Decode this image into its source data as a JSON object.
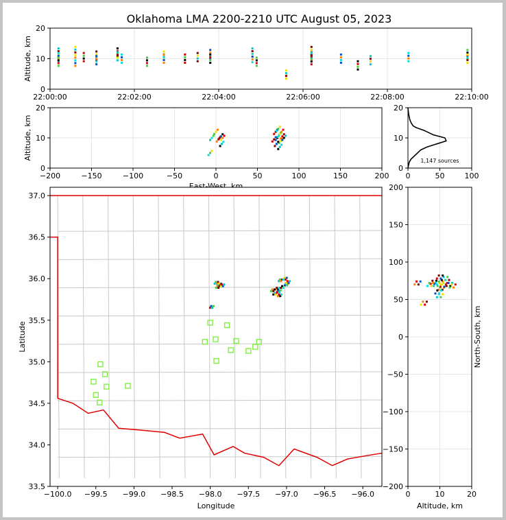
{
  "title": "Oklahoma LMA 2200-2210 UTC August 05, 2023",
  "chart_data": [
    {
      "type": "scatter",
      "panel": "altitude-time",
      "ylabel": "Altitude, km",
      "xlabel": "",
      "xlim_minutes": [
        0,
        10
      ],
      "ylim": [
        0,
        20
      ],
      "xticks": [
        "22:00:00",
        "22:02:00",
        "22:04:00",
        "22:06:00",
        "22:08:00",
        "22:10:00"
      ],
      "yticks": [
        "0",
        "10",
        "20"
      ],
      "grid": true,
      "points_min_km": [
        [
          0.2,
          12
        ],
        [
          0.2,
          10.5
        ],
        [
          0.2,
          9
        ],
        [
          0.6,
          12.5
        ],
        [
          0.6,
          9
        ],
        [
          0.8,
          10.5
        ],
        [
          1.1,
          11
        ],
        [
          1.1,
          9.5
        ],
        [
          1.6,
          12
        ],
        [
          1.6,
          10.8
        ],
        [
          1.7,
          10
        ],
        [
          2.3,
          9
        ],
        [
          2.7,
          11
        ],
        [
          2.7,
          10
        ],
        [
          3.2,
          10
        ],
        [
          3.5,
          10.5
        ],
        [
          3.8,
          11.5
        ],
        [
          3.8,
          10
        ],
        [
          4.8,
          12
        ],
        [
          4.8,
          10.2
        ],
        [
          4.9,
          9
        ],
        [
          5.6,
          4.8
        ],
        [
          6.2,
          11
        ],
        [
          6.2,
          9.5
        ],
        [
          6.2,
          12.5
        ],
        [
          6.9,
          10
        ],
        [
          7.3,
          7.8
        ],
        [
          7.6,
          9.5
        ],
        [
          8.5,
          10.5
        ],
        [
          9.9,
          11.5
        ],
        [
          9.9,
          10
        ]
      ]
    },
    {
      "type": "scatter",
      "panel": "altitude-east-west",
      "xlabel": "East-West, km",
      "ylabel": "Altitude, km",
      "xlim": [
        -200,
        200
      ],
      "ylim": [
        0,
        20
      ],
      "xticks": [
        "−200",
        "−150",
        "−100",
        "−50",
        "0",
        "50",
        "100",
        "150",
        "200"
      ],
      "yticks": [
        "0",
        "10",
        "20"
      ],
      "grid": true,
      "points": [
        [
          -5,
          10
        ],
        [
          0,
          12
        ],
        [
          3,
          9.5
        ],
        [
          6,
          10.5
        ],
        [
          7,
          8
        ],
        [
          -7,
          5
        ],
        [
          8,
          10
        ],
        [
          72,
          12
        ],
        [
          74,
          10
        ],
        [
          76,
          11
        ],
        [
          78,
          9
        ],
        [
          80,
          10.5
        ],
        [
          73,
          8
        ],
        [
          77,
          7
        ],
        [
          75,
          13
        ],
        [
          79,
          12
        ],
        [
          70,
          9.5
        ],
        [
          82,
          10
        ]
      ]
    },
    {
      "type": "line",
      "panel": "altitude-histogram",
      "xlim": [
        0,
        100
      ],
      "ylim": [
        0,
        20
      ],
      "xticks": [
        "0",
        "50",
        "100"
      ],
      "yticks": [
        "0",
        "10",
        "20"
      ],
      "annotation": "1,147 sources",
      "x": [
        0,
        1,
        2,
        5,
        10,
        15,
        20,
        30,
        45,
        60,
        58,
        40,
        30,
        25,
        18,
        12,
        8,
        5,
        3,
        2,
        1,
        0.5,
        0.2,
        0
      ],
      "y": [
        0,
        1,
        2,
        3,
        4,
        5,
        6,
        7,
        8,
        9,
        10,
        11,
        12,
        12.5,
        13,
        13.5,
        14,
        15,
        16,
        17,
        18,
        19,
        19.5,
        20
      ]
    },
    {
      "type": "map",
      "panel": "plan-view",
      "xlabel": "Longitude",
      "ylabel": "Latitude",
      "xlim": [
        -100.1,
        -95.75
      ],
      "ylim": [
        33.5,
        37.1
      ],
      "xticks": [
        "−100.0",
        "−99.5",
        "−99.0",
        "−98.5",
        "−98.0",
        "−97.5",
        "−97.0",
        "−96.5",
        "−96.0"
      ],
      "yticks": [
        "33.5",
        "34.0",
        "34.5",
        "35.0",
        "35.5",
        "36.0",
        "36.5",
        "37.0"
      ],
      "stations": [
        [
          -99.44,
          34.97
        ],
        [
          -99.38,
          34.85
        ],
        [
          -99.53,
          34.76
        ],
        [
          -99.08,
          34.71
        ],
        [
          -99.36,
          34.7
        ],
        [
          -99.5,
          34.6
        ],
        [
          -99.45,
          34.51
        ],
        [
          -98.0,
          35.47
        ],
        [
          -97.78,
          35.44
        ],
        [
          -98.07,
          35.24
        ],
        [
          -97.93,
          35.27
        ],
        [
          -97.66,
          35.25
        ],
        [
          -97.36,
          35.24
        ],
        [
          -97.41,
          35.18
        ],
        [
          -97.73,
          35.14
        ],
        [
          -97.5,
          35.13
        ],
        [
          -97.92,
          35.01
        ]
      ],
      "flashes": [
        [
          -97.92,
          35.95
        ],
        [
          -97.88,
          35.93
        ],
        [
          -97.9,
          35.9
        ],
        [
          -97.84,
          35.92
        ],
        [
          -97.12,
          35.88
        ],
        [
          -97.1,
          35.85
        ],
        [
          -97.05,
          35.9
        ],
        [
          -97.0,
          35.93
        ],
        [
          -97.15,
          35.82
        ],
        [
          -97.08,
          35.98
        ],
        [
          -97.02,
          36.0
        ],
        [
          -97.18,
          35.86
        ],
        [
          -96.98,
          35.96
        ],
        [
          -97.09,
          35.8
        ],
        [
          -97.98,
          35.66
        ]
      ]
    },
    {
      "type": "scatter",
      "panel": "north-south-altitude",
      "xlabel": "Altitude, km",
      "ylabel": "North-South, km",
      "xlim": [
        0,
        20
      ],
      "ylim": [
        -200,
        200
      ],
      "xticks": [
        "0",
        "10",
        "20"
      ],
      "yticks": [
        "−200",
        "−150",
        "−100",
        "−50",
        "0",
        "50",
        "100",
        "150",
        "200"
      ],
      "points": [
        [
          9,
          70
        ],
        [
          10,
          72
        ],
        [
          11,
          68
        ],
        [
          12,
          74
        ],
        [
          10.5,
          65
        ],
        [
          8,
          73
        ],
        [
          13,
          70
        ],
        [
          9.5,
          60
        ],
        [
          11.5,
          78
        ],
        [
          10,
          55
        ],
        [
          7,
          70
        ],
        [
          14,
          68
        ],
        [
          5,
          45
        ],
        [
          3,
          72
        ],
        [
          10,
          80
        ]
      ]
    }
  ]
}
